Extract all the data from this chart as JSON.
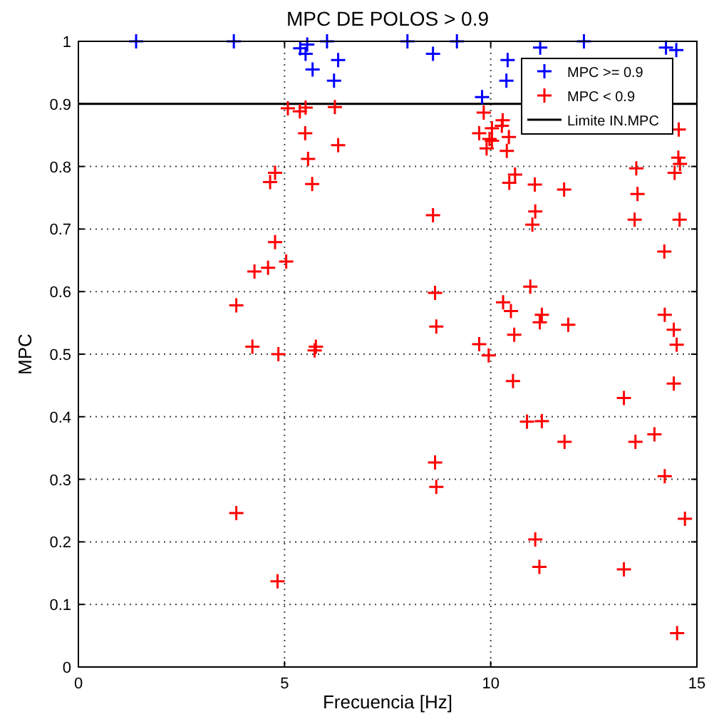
{
  "chart_data": {
    "type": "scatter",
    "title": "MPC DE POLOS > 0.9",
    "xlabel": "Frecuencia [Hz]",
    "ylabel": "MPC",
    "xlim": [
      0,
      15
    ],
    "ylim": [
      0,
      1
    ],
    "xticks": [
      0,
      5,
      10,
      15
    ],
    "yticks": [
      0,
      0.1,
      0.2,
      0.3,
      0.4,
      0.5,
      0.6,
      0.7,
      0.8,
      0.9,
      1
    ],
    "grid": true,
    "legend": "top right",
    "marker": "cross",
    "series": [
      {
        "name": "MPC >= 0.9",
        "color": "#0000ff",
        "x": [
          1.4,
          3.77,
          5.38,
          5.55,
          5.51,
          5.68,
          6.03,
          6.3,
          6.2,
          8.6,
          7.98,
          9.18,
          9.79,
          10.41,
          10.38,
          11.2,
          12.26,
          14.25,
          14.5
        ],
        "values": [
          1,
          1,
          0.989,
          0.995,
          0.98,
          0.955,
          1,
          0.97,
          0.937,
          0.98,
          1,
          1,
          0.911,
          0.97,
          0.937,
          0.99,
          1,
          0.99,
          0.986
        ]
      },
      {
        "name": "MPC < 0.9",
        "color": "#ff0000",
        "x": [
          5.08,
          5.37,
          5.51,
          6.22,
          5.5,
          6.3,
          5.57,
          4.77,
          4.65,
          5.67,
          4.77,
          5.04,
          4.6,
          4.27,
          3.83,
          4.22,
          4.85,
          5.76,
          5.73,
          3.83,
          4.83,
          9.83,
          10.29,
          10.27,
          10.03,
          9.72,
          9.97,
          10.03,
          10.44,
          9.9,
          10.39,
          14.56,
          14.55,
          14.59,
          14.46,
          13.53,
          10.59,
          10.45,
          11.07,
          11.78,
          13.56,
          11.08,
          11.01,
          13.49,
          14.58,
          8.6,
          14.21,
          10.96,
          8.65,
          10.3,
          10.49,
          11.24,
          11.19,
          11.88,
          8.68,
          14.22,
          14.44,
          14.51,
          10.57,
          9.72,
          9.95,
          10.54,
          14.44,
          13.23,
          10.88,
          11.24,
          11.79,
          13.51,
          13.97,
          8.65,
          8.68,
          14.22,
          14.71,
          11.08,
          11.18,
          13.23,
          14.52
        ],
        "values": [
          0.893,
          0.888,
          0.894,
          0.895,
          0.853,
          0.834,
          0.812,
          0.79,
          0.775,
          0.772,
          0.679,
          0.648,
          0.638,
          0.632,
          0.578,
          0.512,
          0.5,
          0.512,
          0.506,
          0.246,
          0.137,
          0.886,
          0.874,
          0.865,
          0.861,
          0.853,
          0.844,
          0.841,
          0.847,
          0.829,
          0.825,
          0.859,
          0.814,
          0.804,
          0.79,
          0.797,
          0.787,
          0.774,
          0.771,
          0.763,
          0.756,
          0.728,
          0.707,
          0.715,
          0.715,
          0.722,
          0.664,
          0.608,
          0.598,
          0.583,
          0.569,
          0.563,
          0.551,
          0.547,
          0.544,
          0.563,
          0.539,
          0.515,
          0.531,
          0.516,
          0.498,
          0.457,
          0.453,
          0.43,
          0.392,
          0.393,
          0.36,
          0.36,
          0.372,
          0.327,
          0.288,
          0.305,
          0.237,
          0.204,
          0.16,
          0.156,
          0.054
        ]
      }
    ],
    "ref_lines": [
      {
        "axis": "y",
        "value": 0.9,
        "label": "Limite IN.MPC",
        "color": "#000000",
        "line_style": "solid"
      }
    ]
  }
}
